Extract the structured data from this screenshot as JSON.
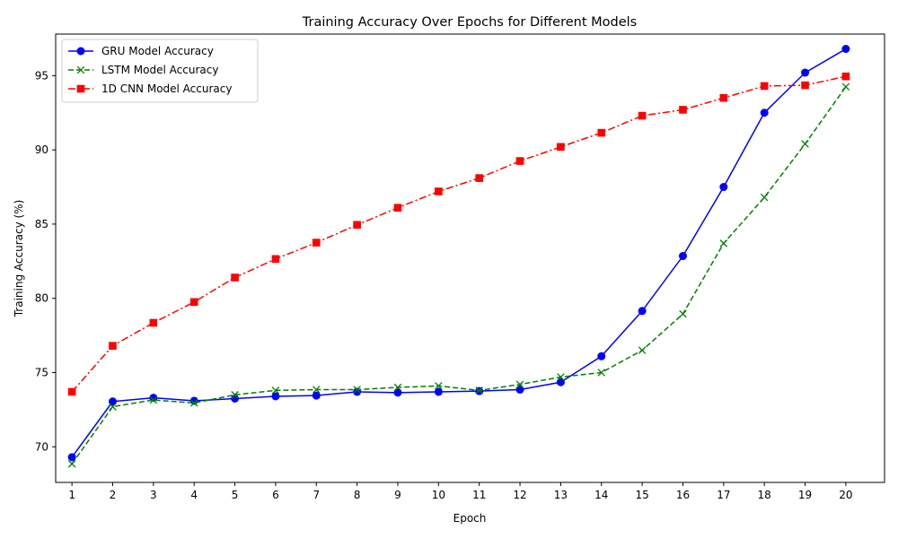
{
  "chart_data": {
    "type": "line",
    "title": "Training Accuracy Over Epochs for Different Models",
    "xlabel": "Epoch",
    "ylabel": "Training Accuracy (%)",
    "x": [
      1,
      2,
      3,
      4,
      5,
      6,
      7,
      8,
      9,
      10,
      11,
      12,
      13,
      14,
      15,
      16,
      17,
      18,
      19,
      20
    ],
    "x_ticks": [
      "1",
      "2",
      "3",
      "4",
      "5",
      "6",
      "7",
      "8",
      "9",
      "10",
      "11",
      "12",
      "13",
      "14",
      "15",
      "16",
      "17",
      "18",
      "19",
      "20"
    ],
    "y_ticks": [
      70,
      75,
      80,
      85,
      90,
      95
    ],
    "xlim": [
      0.6,
      20.95
    ],
    "ylim": [
      67.6,
      97.8
    ],
    "grid": false,
    "legend_position": "top-left",
    "series": [
      {
        "name": "GRU Model Accuracy",
        "color": "#0000ff",
        "line_style": "solid",
        "marker": "circle",
        "values": [
          69.3,
          73.05,
          73.3,
          73.1,
          73.25,
          73.4,
          73.45,
          73.7,
          73.65,
          73.7,
          73.75,
          73.85,
          74.35,
          76.1,
          79.15,
          82.85,
          87.5,
          92.5,
          95.2,
          96.8
        ]
      },
      {
        "name": "LSTM Model Accuracy",
        "color": "#008000",
        "line_style": "dashed",
        "marker": "x",
        "values": [
          68.85,
          72.7,
          73.15,
          72.95,
          73.5,
          73.8,
          73.85,
          73.85,
          74.0,
          74.1,
          73.8,
          74.2,
          74.7,
          75.0,
          76.5,
          78.95,
          83.7,
          86.8,
          90.4,
          94.25
        ]
      },
      {
        "name": "1D CNN Model Accuracy",
        "color": "#ff0000",
        "line_style": "dashdot",
        "marker": "square",
        "values": [
          73.7,
          76.8,
          78.35,
          79.75,
          81.4,
          82.65,
          83.75,
          84.95,
          86.1,
          87.2,
          88.1,
          89.25,
          90.2,
          91.15,
          92.3,
          92.7,
          93.5,
          94.3,
          94.35,
          94.95
        ]
      }
    ]
  }
}
